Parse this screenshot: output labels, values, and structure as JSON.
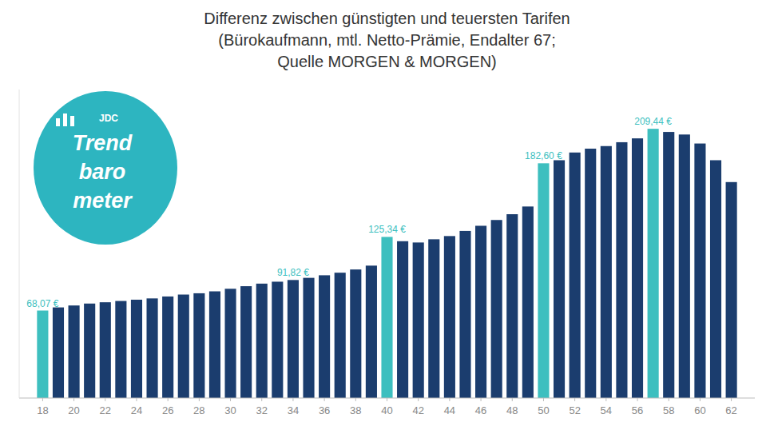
{
  "chart_data": {
    "type": "bar",
    "title": "Differenz zwischen günstigten und teuersten Tarifen\n(Bürokaufmann, mtl. Netto-Prämie, Endalter 67;\nQuelle MORGEN & MORGEN)",
    "x": [
      18,
      19,
      20,
      21,
      22,
      23,
      24,
      25,
      26,
      27,
      28,
      29,
      30,
      31,
      32,
      33,
      34,
      35,
      36,
      37,
      38,
      39,
      40,
      41,
      42,
      43,
      44,
      45,
      46,
      47,
      48,
      49,
      50,
      51,
      52,
      53,
      54,
      55,
      56,
      57,
      58,
      59,
      60,
      61,
      62
    ],
    "values": [
      68.07,
      70.5,
      72.0,
      73.5,
      74.5,
      75.5,
      76.5,
      77.5,
      79.0,
      80.5,
      81.5,
      83.0,
      85.0,
      87.0,
      89.0,
      90.5,
      91.82,
      93.5,
      95.5,
      97.5,
      100.0,
      103.0,
      125.34,
      122.0,
      121.0,
      123.5,
      126.0,
      130.0,
      134.0,
      138.5,
      143.0,
      149.0,
      182.6,
      185.0,
      191.0,
      194.0,
      196.0,
      199.0,
      202.0,
      209.44,
      207.0,
      205.0,
      198.0,
      185.0,
      168.0
    ],
    "colors": [
      "#3dbfbf",
      "#1b3d6e",
      "#1b3d6e",
      "#1b3d6e",
      "#1b3d6e",
      "#1b3d6e",
      "#1b3d6e",
      "#1b3d6e",
      "#1b3d6e",
      "#1b3d6e",
      "#1b3d6e",
      "#1b3d6e",
      "#1b3d6e",
      "#1b3d6e",
      "#1b3d6e",
      "#1b3d6e",
      "#1b3d6e",
      "#1b3d6e",
      "#1b3d6e",
      "#1b3d6e",
      "#1b3d6e",
      "#1b3d6e",
      "#3dbfbf",
      "#1b3d6e",
      "#1b3d6e",
      "#1b3d6e",
      "#1b3d6e",
      "#1b3d6e",
      "#1b3d6e",
      "#1b3d6e",
      "#1b3d6e",
      "#1b3d6e",
      "#3dbfbf",
      "#1b3d6e",
      "#1b3d6e",
      "#1b3d6e",
      "#1b3d6e",
      "#1b3d6e",
      "#1b3d6e",
      "#3dbfbf",
      "#1b3d6e",
      "#1b3d6e",
      "#1b3d6e",
      "#1b3d6e",
      "#1b3d6e"
    ],
    "annotations": [
      {
        "x": 18,
        "y": 68.07,
        "label": "68,07 €",
        "color": "#3dbfbf"
      },
      {
        "x": 34,
        "y": 91.82,
        "label": "91,82 €",
        "color": "#3dbfbf"
      },
      {
        "x": 40,
        "y": 125.34,
        "label": "125,34 €",
        "color": "#3dbfbf"
      },
      {
        "x": 50,
        "y": 182.6,
        "label": "182,60 €",
        "color": "#3dbfbf"
      },
      {
        "x": 57,
        "y": 209.44,
        "label": "209,44 €",
        "color": "#3dbfbf"
      }
    ],
    "logo": {
      "texts": [
        "JDC",
        "Trend",
        "baro",
        "meter"
      ],
      "color": "#2db5c0"
    },
    "xlim": [
      16.5,
      63.5
    ],
    "xticks": [
      18,
      20,
      22,
      24,
      26,
      28,
      30,
      32,
      34,
      36,
      38,
      40,
      42,
      44,
      46,
      48,
      50,
      52,
      54,
      56,
      58,
      60,
      62
    ],
    "ylim": [
      0,
      240
    ],
    "tick_labels": "x",
    "grid": false
  }
}
